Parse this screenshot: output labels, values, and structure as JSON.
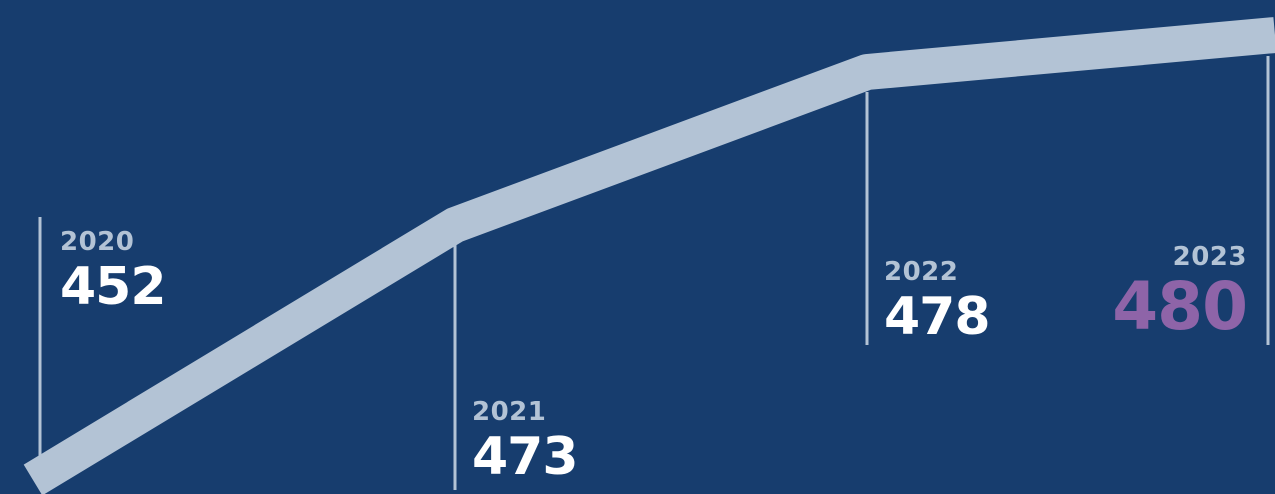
{
  "colors": {
    "background": "#173d6e",
    "line": "#b3c3d5",
    "tick": "#b3c3d5",
    "year_text": "#b3c3d5",
    "value_text": "#ffffff",
    "highlight": "#8e64a8"
  },
  "chart_data": {
    "type": "line",
    "title": "",
    "xlabel": "",
    "ylabel": "",
    "categories": [
      "2020",
      "2021",
      "2022",
      "2023"
    ],
    "values": [
      452,
      473,
      478,
      480
    ],
    "data_labels": [
      "452",
      "473",
      "478",
      "480"
    ],
    "highlight_category": "2023",
    "grid": false,
    "legend": "none"
  }
}
